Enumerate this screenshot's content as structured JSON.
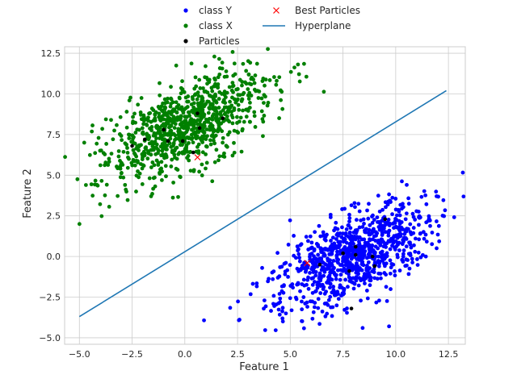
{
  "chart_data": {
    "type": "scatter",
    "xlabel": "Feature 1",
    "ylabel": "Feature 2",
    "xlim": [
      -5.7,
      13.3
    ],
    "ylim": [
      -5.4,
      12.9
    ],
    "xticks": [
      -5.0,
      -2.5,
      0.0,
      2.5,
      5.0,
      7.5,
      10.0,
      12.5
    ],
    "xtick_labels": [
      "−5.0",
      "−2.5",
      "0.0",
      "2.5",
      "5.0",
      "7.5",
      "10.0",
      "12.5"
    ],
    "yticks": [
      -5.0,
      -2.5,
      0.0,
      2.5,
      5.0,
      7.5,
      10.0,
      12.5
    ],
    "ytick_labels": [
      "−5.0",
      "−2.5",
      "0.0",
      "2.5",
      "5.0",
      "7.5",
      "10.0",
      "12.5"
    ],
    "grid": true,
    "legend_placement": "top-center",
    "legend": [
      {
        "label": "class Y",
        "marker": "dot",
        "color": "#0000ff"
      },
      {
        "label": "class X",
        "marker": "dot",
        "color": "#008000"
      },
      {
        "label": "Particles",
        "marker": "dot",
        "color": "#000000"
      },
      {
        "label": "Best Particles",
        "marker": "x",
        "color": "#ff0000"
      },
      {
        "label": "Hyperplane",
        "marker": "line",
        "color": "#1f77b4"
      }
    ],
    "series": [
      {
        "name": "class Y",
        "color": "#0000ff",
        "distribution": {
          "center": [
            8.0,
            0.0
          ],
          "count": 900,
          "sd_major": 2.3,
          "sd_minor": 1.1,
          "angle_deg": 38
        }
      },
      {
        "name": "class X",
        "color": "#008000",
        "distribution": {
          "center": [
            0.0,
            8.0
          ],
          "count": 900,
          "sd_major": 2.3,
          "sd_minor": 1.1,
          "angle_deg": 38
        }
      },
      {
        "name": "Particles",
        "color": "#000000",
        "points": [
          [
            -1.9,
            7.2
          ],
          [
            -1.0,
            7.8
          ],
          [
            -0.8,
            7.1
          ],
          [
            -0.1,
            7.1
          ],
          [
            0.4,
            6.4
          ],
          [
            0.6,
            8.8
          ],
          [
            0.7,
            7.9
          ],
          [
            1.8,
            8.5
          ],
          [
            -2.5,
            6.8
          ],
          [
            7.5,
            0.2
          ],
          [
            7.8,
            -0.9
          ],
          [
            7.9,
            -3.2
          ],
          [
            8.1,
            0.6
          ],
          [
            8.1,
            0.1
          ],
          [
            8.9,
            0.0
          ],
          [
            9.5,
            2.3
          ],
          [
            6.4,
            -0.5
          ],
          [
            9.0,
            -0.6
          ]
        ]
      },
      {
        "name": "Best Particles",
        "color": "#ff0000",
        "points": [
          [
            0.6,
            6.1
          ],
          [
            5.8,
            -0.4
          ]
        ]
      },
      {
        "name": "Hyperplane",
        "color": "#1f77b4",
        "line": [
          [
            -5.0,
            -3.7
          ],
          [
            12.4,
            10.2
          ]
        ]
      }
    ]
  }
}
